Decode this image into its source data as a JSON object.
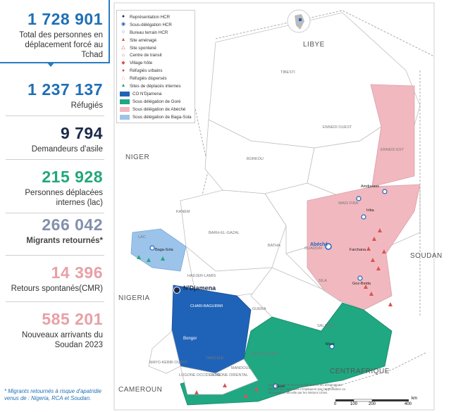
{
  "stats": [
    {
      "value": "1 728 901",
      "label": "Total des personnes en déplacement forcé au Tchad",
      "color": "#1f6fb5"
    },
    {
      "value": "1 237 137",
      "label": "Réfugiés",
      "color": "#1f6fb5"
    },
    {
      "value": "9 794",
      "label": "Demandeurs d'asile",
      "color": "#1b2a4a"
    },
    {
      "value": "215 928",
      "label": "Personnes déplacées internes (lac)",
      "color": "#22a77a"
    },
    {
      "value": "266 042",
      "label": "Migrants retournés*",
      "color": "#8390ad"
    },
    {
      "value": "14 396",
      "label": "Retours spontanés(CMR)",
      "color": "#e8a0a6"
    },
    {
      "value": "585 201",
      "label": "Nouveaux arrivants du Soudan 2023",
      "color": "#e8a0a6"
    }
  ],
  "footnote": "* Migrants retournés à risque d'apatridie venus de : Nigeria, RCA et Soudan.",
  "legend": {
    "symbols": [
      {
        "icon": "representation-icon",
        "label": "Représentation HCR"
      },
      {
        "icon": "sous-delegation-icon",
        "label": "Sous-délégation HCR"
      },
      {
        "icon": "bureau-terrain-icon",
        "label": "Bureau terrain HCR"
      },
      {
        "icon": "site-amenage-icon",
        "label": "Site aménagé"
      },
      {
        "icon": "site-spontane-icon",
        "label": "Site spontené"
      },
      {
        "icon": "centre-transit-icon",
        "label": "Centre de transit"
      },
      {
        "icon": "village-hote-icon",
        "label": "Village hôte"
      },
      {
        "icon": "refugies-urbains-icon",
        "label": "Réfugiés urbains"
      },
      {
        "icon": "refugies-disperses-icon",
        "label": "Réfugiés dispersés"
      },
      {
        "icon": "deplaces-internes-icon",
        "label": "Sites de déplacés internes"
      }
    ],
    "areas": [
      {
        "label": "CO N'Djamena",
        "color": "#1f63b8"
      },
      {
        "label": "Sous délégation de Goré",
        "color": "#1fa882"
      },
      {
        "label": "Sous délégation de Abéché",
        "color": "#f2b8bf"
      },
      {
        "label": "Sous délégation de Baga-Sola",
        "color": "#9cc3ea"
      }
    ]
  },
  "countries": [
    "LIBYE",
    "NIGER",
    "NIGERIA",
    "SOUDAN",
    "CAMEROUN",
    "CENTRAFRIQUE"
  ],
  "regions": [
    "TIBESTI",
    "ENNEDI OUEST",
    "ENNEDI EST",
    "BORKOU",
    "KANEM",
    "BARH-EL-GAZAL",
    "BATHA",
    "WADI FIRA",
    "OUADDAI",
    "SILA",
    "LAC",
    "HADJER-LAMIS",
    "GUERA",
    "SALAMAT",
    "MOYEN-CHARI",
    "MANDOUL",
    "LOGONE ORIENTAL",
    "LOGONE OCCIDENTAL",
    "TANDJILE",
    "MAYO-KEBBI OUEST",
    "CHARI-BAGUIRMI"
  ],
  "cities": [
    "N'Djamena",
    "Abéché",
    "Bongor",
    "Iriba",
    "Goz-Beida",
    "Farchana",
    "Amdjarass",
    "Baga-Sola",
    "Maro",
    "Goré"
  ],
  "scale": {
    "ticks": [
      "0",
      "100",
      "200",
      "400"
    ],
    "unit": "km"
  },
  "disclaimer": "Les frontières et les noms indiqués et les désignations utilisées sur cette carte n'impliquent pas l'approbation ou l'acceptation officielle par les Nations Unies."
}
